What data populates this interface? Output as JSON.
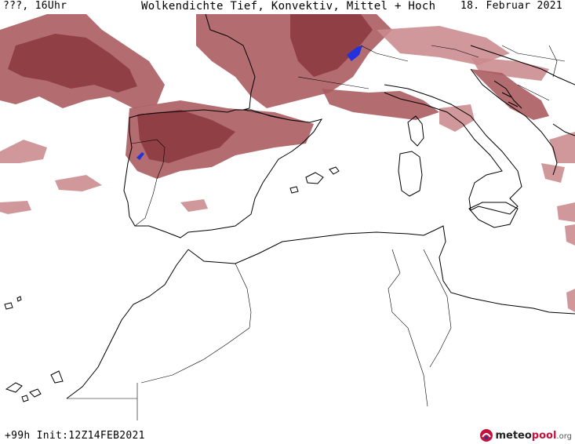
{
  "header": {
    "location_time": "???, 16Uhr",
    "title": "Wolkendichte  Tief, Konvektiv, Mittel + Hoch",
    "date": "18. Februar 2021"
  },
  "footer": {
    "forecast_info": "+99h  Init:12Z14FEB2021"
  },
  "logo": {
    "brand_part1": "meteo",
    "brand_part2": "pool",
    "brand_tld": ".org"
  },
  "map": {
    "region": "Western Mediterranean",
    "colors": {
      "cloud_dark": "#8b3a3f",
      "cloud_mid": "#a8585c",
      "cloud_light": "#c98a8c",
      "convective": "#2233dd",
      "coastline": "#000000"
    }
  }
}
